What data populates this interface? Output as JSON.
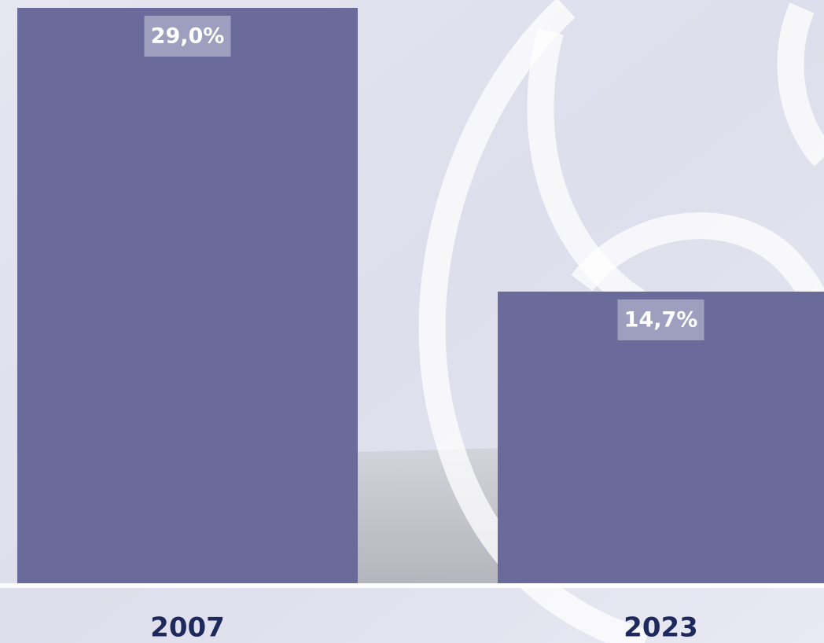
{
  "chart_data": {
    "type": "bar",
    "categories": [
      "2007",
      "2023"
    ],
    "values": [
      29.0,
      14.7
    ],
    "value_labels": [
      "29,0%",
      "14,7%"
    ],
    "color": "#6b6b9b"
  }
}
